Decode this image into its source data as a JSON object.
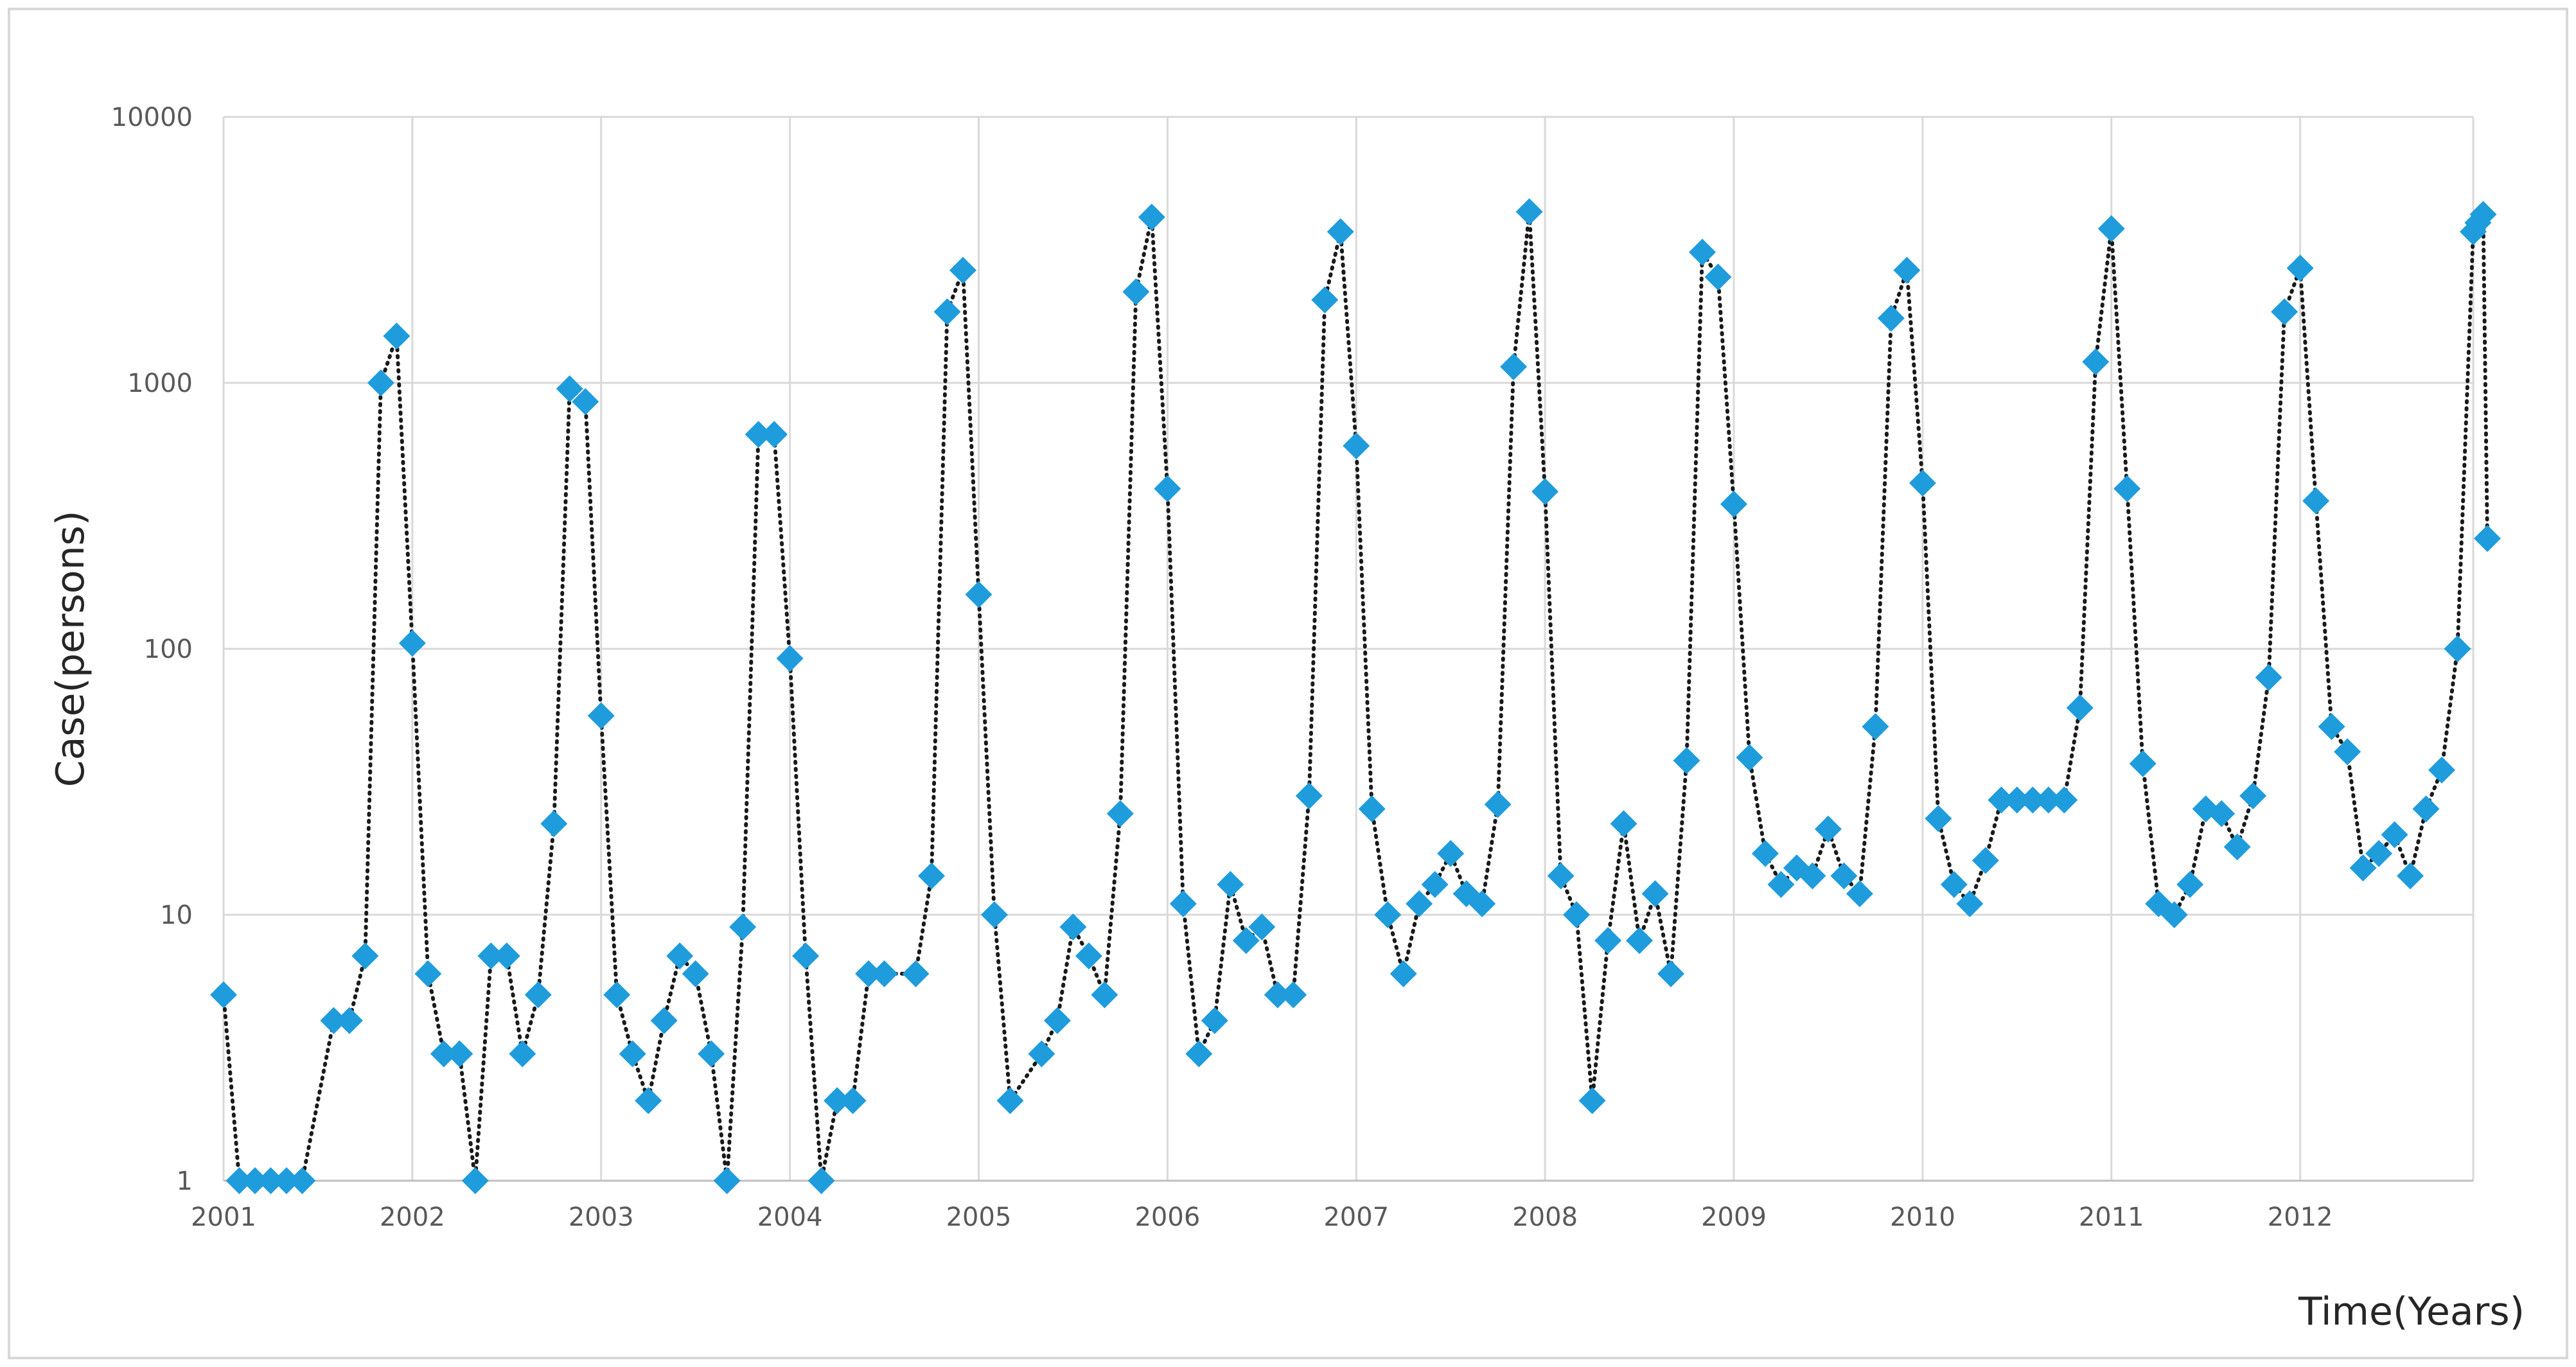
{
  "chart_data": {
    "type": "line",
    "title": "",
    "xlabel": "Time(Years)",
    "ylabel": "Case(persons)",
    "y_scale": "log",
    "ylim": [
      1,
      10000
    ],
    "y_ticks": [
      "1",
      "10",
      "100",
      "1000",
      "10000"
    ],
    "x_ticks": [
      "2001",
      "2002",
      "2003",
      "2004",
      "2005",
      "2006",
      "2007",
      "2008",
      "2009",
      "2010",
      "2011",
      "2012"
    ],
    "xlim": [
      "2001-01",
      "2012-12"
    ],
    "grid": {
      "horizontal": true,
      "vertical": true
    },
    "legend": "none",
    "marker": "diamond",
    "colors": {
      "marker": "#1f9cdc",
      "line": "#1a1a1a",
      "grid": "#d9d9d9"
    },
    "series": [
      {
        "x": [
          "2001-01",
          "2001-02",
          "2001-03",
          "2001-04",
          "2001-05",
          "2001-06",
          "2001-07",
          "2001-08",
          "2001-09",
          "2001-10",
          "2001-11",
          "2001-12",
          "2002-01",
          "2002-02",
          "2002-03",
          "2002-04",
          "2002-05",
          "2002-06",
          "2002-07",
          "2002-08",
          "2002-09",
          "2002-10",
          "2002-11",
          "2002-12",
          "2003-01",
          "2003-02",
          "2003-03",
          "2003-04",
          "2003-05",
          "2003-06",
          "2003-07",
          "2003-08",
          "2003-09",
          "2003-10",
          "2003-11",
          "2003-12",
          "2004-01",
          "2004-02",
          "2004-03",
          "2004-04",
          "2004-05",
          "2004-06",
          "2004-07",
          "2004-08",
          "2004-09",
          "2004-10",
          "2004-11",
          "2004-12",
          "2005-01",
          "2005-02",
          "2005-03",
          "2005-04",
          "2005-05",
          "2005-06",
          "2005-07",
          "2005-08",
          "2005-09",
          "2005-10",
          "2005-11",
          "2005-12",
          "2006-01",
          "2006-02",
          "2006-03",
          "2006-04",
          "2006-05",
          "2006-06",
          "2006-07",
          "2006-08",
          "2006-09",
          "2006-10",
          "2006-11",
          "2006-12",
          "2007-01",
          "2007-02",
          "2007-03",
          "2007-04",
          "2007-05",
          "2007-06",
          "2007-07",
          "2007-08",
          "2007-09",
          "2007-10",
          "2007-11",
          "2007-12",
          "2008-01",
          "2008-02",
          "2008-03",
          "2008-04",
          "2008-05",
          "2008-06",
          "2008-07",
          "2008-08",
          "2008-09",
          "2008-10",
          "2008-11",
          "2008-12",
          "2009-01",
          "2009-02",
          "2009-03",
          "2009-04",
          "2009-05",
          "2009-06",
          "2009-07",
          "2009-08",
          "2009-09",
          "2009-10",
          "2009-11",
          "2009-12",
          "2010-01",
          "2010-02",
          "2010-03",
          "2010-04",
          "2010-05",
          "2010-06",
          "2010-07",
          "2010-08",
          "2010-09",
          "2010-10",
          "2010-11",
          "2010-12",
          "2011-01",
          "2011-02",
          "2011-03",
          "2011-04",
          "2011-05",
          "2011-06",
          "2011-07",
          "2011-08",
          "2011-09",
          "2011-10",
          "2011-11",
          "2011-12",
          "2012-01",
          "2012-02",
          "2012-03",
          "2012-04",
          "2012-05",
          "2012-06",
          "2012-07",
          "2012-08",
          "2012-09",
          "2012-10",
          "2012-11",
          "2012-12"
        ],
        "values": [
          5,
          1,
          1,
          1,
          1,
          1,
          null,
          4,
          4,
          7,
          1000,
          1500,
          105,
          6,
          3,
          3,
          1,
          7,
          7,
          3,
          5,
          22,
          950,
          850,
          56,
          5,
          3,
          2,
          4,
          7,
          6,
          3,
          1,
          9,
          640,
          640,
          92,
          7,
          1,
          2,
          2,
          6,
          6,
          null,
          6,
          14,
          1850,
          2650,
          160,
          10,
          2,
          null,
          3,
          4,
          9,
          7,
          5,
          24,
          2200,
          4200,
          400,
          11,
          3,
          4,
          13,
          8,
          9,
          5,
          5,
          28,
          2050,
          3700,
          580,
          25,
          10,
          6,
          11,
          13,
          17,
          12,
          11,
          26,
          1150,
          4400,
          390,
          14,
          10,
          2,
          8,
          22,
          8,
          12,
          6,
          38,
          3100,
          2500,
          350,
          39,
          17,
          13,
          15,
          14,
          21,
          14,
          12,
          51,
          1750,
          2650,
          420,
          23,
          13,
          11,
          16,
          27,
          27,
          27,
          27,
          27,
          60,
          1200,
          3800,
          400,
          37,
          11,
          10,
          13,
          25,
          24,
          18,
          28,
          78,
          1850,
          2700,
          360,
          51,
          41,
          15,
          17,
          20,
          14,
          25,
          35,
          100,
          3700
        ],
        "extra_points": [
          {
            "x": "2012-12-10",
            "value": 4000
          },
          {
            "x": "2012-12-20",
            "value": 4300
          },
          {
            "x": "2012-12-28",
            "value": 260
          }
        ]
      }
    ]
  }
}
